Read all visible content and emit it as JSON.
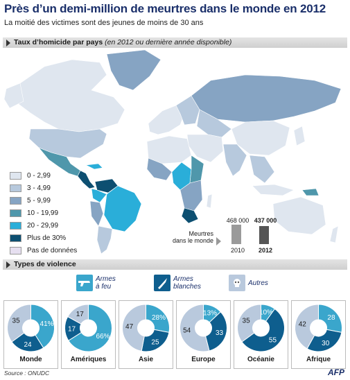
{
  "header": {
    "title": "Près d’un demi-million de meurtres dans le monde en 2012",
    "subtitle": "La moitié des victimes sont des jeunes de moins de 30 ans"
  },
  "map_section": {
    "label": "Taux d’homicide par pays",
    "note": "(en 2012 ou dernière année disponible)"
  },
  "legend": [
    {
      "label": "0 - 2,99",
      "color": "#dfe6ef"
    },
    {
      "label": "3 - 4,99",
      "color": "#b7c9dd"
    },
    {
      "label": "5 - 9,99",
      "color": "#86a4c3"
    },
    {
      "label": "10 - 19,99",
      "color": "#4f97ab"
    },
    {
      "label": "20 - 29,99",
      "color": "#2aaed9"
    },
    {
      "label": "Plus de 30%",
      "color": "#0d4f71"
    },
    {
      "label": "Pas de données",
      "color": "#e6dff0"
    }
  ],
  "murders": {
    "caption_line1": "Meurtres",
    "caption_line2": "dans le monde",
    "y2010": {
      "year": "2010",
      "value": "468 000"
    },
    "y2012": {
      "year": "2012",
      "value": "437 000"
    }
  },
  "violence_section": {
    "label": "Types de violence"
  },
  "violence_types": [
    {
      "line1": "Armes",
      "line2": "à feu",
      "color": "#3aa6cc",
      "icon": "gun-icon"
    },
    {
      "line1": "Armes",
      "line2": "blanches",
      "color": "#0e5e8e",
      "icon": "knife-icon"
    },
    {
      "line1": "Autres",
      "line2": "",
      "color": "#b9c9dd",
      "icon": "skull-icon"
    }
  ],
  "chart_data": {
    "type": "pie",
    "donut": true,
    "series_names": [
      "Armes à feu",
      "Armes blanches",
      "Autres"
    ],
    "colors": [
      "#3aa6cc",
      "#0e5e8e",
      "#b9c9dd"
    ],
    "panels": [
      {
        "name": "Monde",
        "values": [
          41,
          24,
          35
        ],
        "labels": [
          "41%",
          "24",
          "35"
        ]
      },
      {
        "name": "Amériques",
        "values": [
          66,
          17,
          17
        ],
        "labels": [
          "66%",
          "17",
          "17"
        ]
      },
      {
        "name": "Asie",
        "values": [
          28,
          25,
          47
        ],
        "labels": [
          "28%",
          "25",
          "47"
        ]
      },
      {
        "name": "Europe",
        "values": [
          13,
          33,
          54
        ],
        "labels": [
          "13%",
          "33",
          "54"
        ]
      },
      {
        "name": "Océanie",
        "values": [
          10,
          55,
          35
        ],
        "labels": [
          "10%",
          "55",
          "35"
        ]
      },
      {
        "name": "Afrique",
        "values": [
          28,
          30,
          42
        ],
        "labels": [
          "28",
          "30",
          "42"
        ]
      }
    ]
  },
  "footer": {
    "source": "Source : ONUDC",
    "brand": "AFP"
  }
}
